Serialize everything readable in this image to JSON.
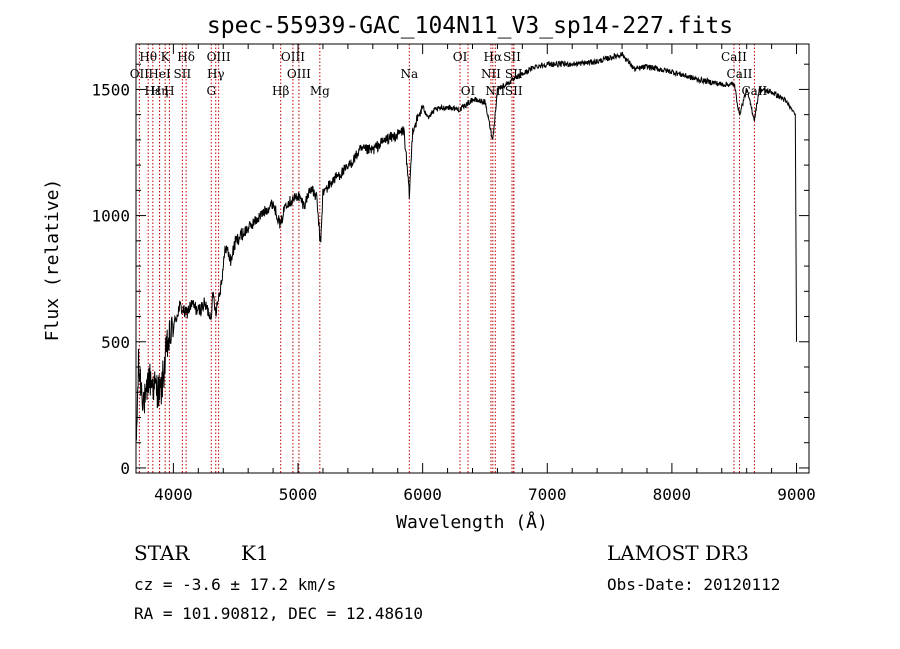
{
  "chart_data": {
    "type": "line",
    "title": "spec-55939-GAC_104N11_V3_sp14-227.fits",
    "xlabel": "Wavelength (Å)",
    "ylabel": "Flux (relative)",
    "xlim": [
      3700,
      9100
    ],
    "ylim": [
      -20,
      1680
    ],
    "x_ticks": [
      4000,
      5000,
      6000,
      7000,
      8000,
      9000
    ],
    "x_tick_labels": [
      "4000",
      "5000",
      "6000",
      "7000",
      "8000",
      "9000"
    ],
    "y_ticks": [
      0,
      500,
      1000,
      1500
    ],
    "y_tick_labels": [
      "0",
      "500",
      "1000",
      "1500"
    ],
    "series": [
      {
        "name": "flux",
        "x": [
          3700,
          3720,
          3750,
          3780,
          3800,
          3850,
          3900,
          3950,
          4000,
          4050,
          4100,
          4150,
          4200,
          4250,
          4300,
          4320,
          4340,
          4380,
          4420,
          4460,
          4500,
          4600,
          4700,
          4800,
          4860,
          4900,
          4950,
          5000,
          5050,
          5100,
          5150,
          5180,
          5200,
          5300,
          5400,
          5500,
          5600,
          5700,
          5800,
          5850,
          5893,
          5920,
          6000,
          6050,
          6100,
          6200,
          6300,
          6400,
          6500,
          6563,
          6600,
          6700,
          6800,
          6900,
          7000,
          7200,
          7400,
          7600,
          7700,
          7800,
          8000,
          8200,
          8400,
          8500,
          8542,
          8600,
          8662,
          8700,
          8800,
          8900,
          8950,
          8990,
          9000
        ],
        "y": [
          60,
          400,
          300,
          250,
          360,
          320,
          300,
          480,
          560,
          640,
          610,
          650,
          620,
          650,
          600,
          690,
          620,
          720,
          880,
          820,
          900,
          950,
          1000,
          1050,
          960,
          1050,
          1060,
          1080,
          1040,
          1110,
          1070,
          880,
          1090,
          1150,
          1190,
          1260,
          1260,
          1300,
          1320,
          1340,
          1080,
          1340,
          1430,
          1390,
          1420,
          1430,
          1420,
          1460,
          1450,
          1300,
          1500,
          1530,
          1560,
          1590,
          1600,
          1600,
          1610,
          1640,
          1580,
          1590,
          1570,
          1540,
          1520,
          1520,
          1400,
          1500,
          1380,
          1500,
          1490,
          1460,
          1430,
          1400,
          500
        ]
      }
    ],
    "line_markers": [
      {
        "label": "Hθ",
        "wavelength": 3798,
        "row": 0
      },
      {
        "label": "K",
        "wavelength": 3934,
        "row": 0
      },
      {
        "label": "Hδ",
        "wavelength": 4102,
        "row": 0
      },
      {
        "label": "OIII",
        "wavelength": 4363,
        "row": 0
      },
      {
        "label": "OIII",
        "wavelength": 4959,
        "row": 0
      },
      {
        "label": "OI",
        "wavelength": 6300,
        "row": 0
      },
      {
        "label": "Hα",
        "wavelength": 6563,
        "row": 0
      },
      {
        "label": "SII",
        "wavelength": 6717,
        "row": 0
      },
      {
        "label": "CaII",
        "wavelength": 8498,
        "row": 0
      },
      {
        "label": "OII",
        "wavelength": 3727,
        "row": 1
      },
      {
        "label": "HeI",
        "wavelength": 3889,
        "row": 1
      },
      {
        "label": "SII",
        "wavelength": 4072,
        "row": 1
      },
      {
        "label": "Hγ",
        "wavelength": 4340,
        "row": 1
      },
      {
        "label": "OIII",
        "wavelength": 5007,
        "row": 1
      },
      {
        "label": "Na",
        "wavelength": 5893,
        "row": 1
      },
      {
        "label": "NII",
        "wavelength": 6548,
        "row": 1
      },
      {
        "label": "SII",
        "wavelength": 6731,
        "row": 1
      },
      {
        "label": "CaII",
        "wavelength": 8542,
        "row": 1
      },
      {
        "label": "Hε",
        "wavelength": 3835,
        "row": 2
      },
      {
        "label": "Hη",
        "wavelength": 3889,
        "row": 2
      },
      {
        "label": "H",
        "wavelength": 3968,
        "row": 2
      },
      {
        "label": "G",
        "wavelength": 4304,
        "row": 2
      },
      {
        "label": "Hβ",
        "wavelength": 4861,
        "row": 2
      },
      {
        "label": "Mg",
        "wavelength": 5175,
        "row": 2
      },
      {
        "label": "OI",
        "wavelength": 6364,
        "row": 2
      },
      {
        "label": "NII",
        "wavelength": 6583,
        "row": 2
      },
      {
        "label": "SII",
        "wavelength": 6731,
        "row": 2
      },
      {
        "label": "CaII",
        "wavelength": 8662,
        "row": 2
      }
    ],
    "marker_color": "#c00000"
  },
  "info": {
    "object_class": "STAR",
    "subclass": "K1",
    "redshift": "cz = -3.6 ± 17.2 km/s",
    "coords": "RA = 101.90812, DEC =  12.48610",
    "survey": "LAMOST DR3",
    "obs_date": "Obs-Date: 20120112"
  }
}
